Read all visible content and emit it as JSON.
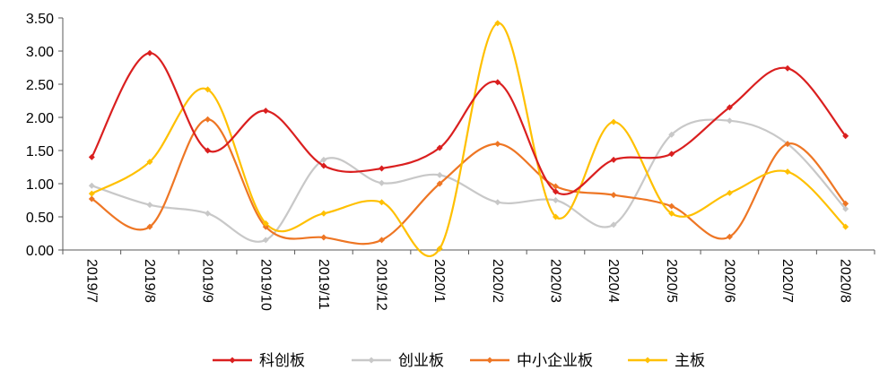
{
  "chart_data": {
    "type": "line",
    "categories": [
      "2019/7",
      "2019/8",
      "2019/9",
      "2019/10",
      "2019/11",
      "2019/12",
      "2020/1",
      "2020/2",
      "2020/3",
      "2020/4",
      "2020/5",
      "2020/6",
      "2020/7",
      "2020/8"
    ],
    "ylim": [
      0,
      3.5
    ],
    "yticks": [
      "0.00",
      "0.50",
      "1.00",
      "1.50",
      "2.00",
      "2.50",
      "3.00",
      "3.50"
    ],
    "grid": false,
    "legend_position": "bottom",
    "series": [
      {
        "name": "科创板",
        "color": "#DA1F1F",
        "values": [
          1.4,
          2.97,
          1.5,
          2.1,
          1.27,
          1.23,
          1.54,
          2.53,
          0.88,
          1.36,
          1.45,
          2.15,
          2.74,
          1.72
        ]
      },
      {
        "name": "创业板",
        "color": "#C8C8C8",
        "values": [
          0.97,
          0.68,
          0.55,
          0.15,
          1.36,
          1.01,
          1.13,
          0.72,
          0.75,
          0.38,
          1.74,
          1.95,
          1.6,
          0.62
        ]
      },
      {
        "name": "中小企业板",
        "color": "#EE7624",
        "values": [
          0.77,
          0.35,
          1.97,
          0.35,
          0.19,
          0.15,
          1.0,
          1.6,
          0.96,
          0.83,
          0.66,
          0.2,
          1.6,
          0.7
        ]
      },
      {
        "name": "主板",
        "color": "#FFC000",
        "values": [
          0.85,
          1.33,
          2.42,
          0.4,
          0.55,
          0.72,
          0.02,
          3.42,
          0.5,
          1.93,
          0.55,
          0.86,
          1.18,
          0.35
        ]
      }
    ]
  }
}
